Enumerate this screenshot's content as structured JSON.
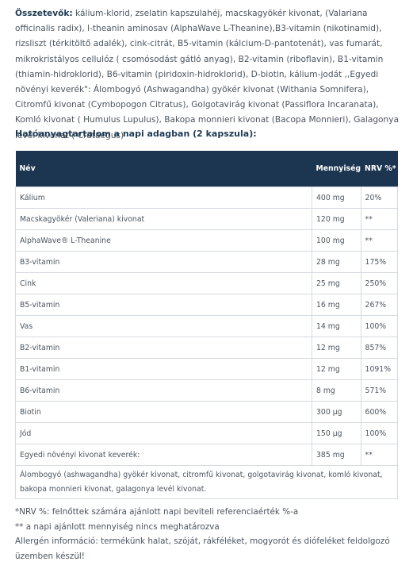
{
  "ingredients": {
    "label": "Összetevők:",
    "text": "kálium-klorid, zselatin kapszulahéj, macskagyökér kivonat, (Valariana officinalis radix), l-theanin aminosav (AlphaWave L-Theanine),B3-vitamin (nikotinamid), rizsliszt (térkitöltő adalék), cink-citrát, B5-vitamin (kálcium-D-pantotenát), vas fumarát, mikrokristályos cellulóz ( csomósodást gátló anyag), B2-vitamin (riboflavin), B1-vitamin (thiamin-hidroklorid), B6-vitamin (piridoxin-hidroklorid), D-biotin, kálium-jodát ,,Egyedi növényi keverék\": Álombogyó (Ashwagandha) gyökér kivonat (Withania Somnifera), Citromfű kivonat (Cymbopogon Citratus), Golgotavirág kivonat (Passiflora Incaranata), Komló kivonat ( Humulus Lupulus), Bakopa monnieri kivonat (Bacopa Monnieri), Galagonya levél kivonat ( Crataegus)"
  },
  "heading": "Hatóanyagtartalom a napi adagban (2 kapszula):",
  "table": {
    "header": [
      "Név",
      "Mennyiség",
      "NRV %*"
    ],
    "rows": [
      [
        "Kálium",
        "400 mg",
        "20%"
      ],
      [
        "Macskagyökér (Valeriana) kivonat",
        "120 mg",
        "**"
      ],
      [
        "AlphaWave® L-Theanine",
        "100 mg",
        "**"
      ],
      [
        "B3-vitamin",
        "28 mg",
        "175%"
      ],
      [
        "Cink",
        "25 mg",
        "250%"
      ],
      [
        "B5-vitamin",
        "16 mg",
        "267%"
      ],
      [
        "Vas",
        "14 mg",
        "100%"
      ],
      [
        "B2-vitamin",
        "12 mg",
        "857%"
      ],
      [
        "B1-vitamin",
        "12 mg",
        "1091%"
      ],
      [
        "B6-vitamin",
        "8 mg",
        "571%"
      ],
      [
        "Biotin",
        "300 µg",
        "600%"
      ],
      [
        "Jód",
        "150 µg",
        "100%"
      ],
      [
        "Egyedi növényi kivonat keverék:",
        "385 mg",
        "**"
      ]
    ],
    "note": "Álombogyó (ashwagandha) gyökér kivonat, citromfű kivonat, golgotavirág kivonat, komló kivonat, bakopa monnieri kivonat, galagonya levél kivonat."
  },
  "footnotes": [
    "*NRV %: felnőttek számára ajánlott napi beviteli referenciaérték %-a",
    "** a napi ajánlott mennyiség nincs meghatározva",
    "Allergén információ: termékünk halat, szóját, rákféléket, mogyorót és diófeléket feldolgozó üzemben készül!"
  ]
}
